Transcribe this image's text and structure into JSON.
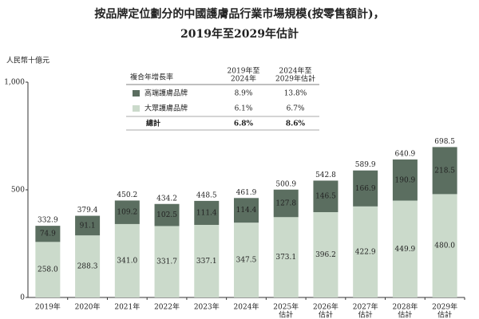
{
  "chart_data": {
    "type": "stacked_bar",
    "title": "按品牌定位劃分的中國護膚品行業市場規模(按零售額計)，",
    "subtitle": "2019年至2029年估計",
    "y_label": "人民幣十億元",
    "categories": [
      [
        "2019年"
      ],
      [
        "2020年"
      ],
      [
        "2021年"
      ],
      [
        "2022年"
      ],
      [
        "2023年"
      ],
      [
        "2024年"
      ],
      [
        "2025年",
        "估計"
      ],
      [
        "2026年",
        "估計"
      ],
      [
        "2027年",
        "估計"
      ],
      [
        "2028年",
        "估計"
      ],
      [
        "2029年",
        "估計"
      ]
    ],
    "series": [
      {
        "name": "大眾護膚品牌",
        "color": "#cbdacb",
        "values": [
          258.0,
          288.3,
          341.0,
          331.7,
          337.1,
          347.5,
          373.1,
          396.2,
          422.9,
          449.9,
          480.0
        ],
        "value_labels": [
          "258.0",
          "288.3",
          "341.0",
          "331.7",
          "337.1",
          "347.5",
          "373.1",
          "396.2",
          "422.9",
          "449.9",
          "480.0"
        ]
      },
      {
        "name": "高端護膚品牌",
        "color": "#5b6e60",
        "values": [
          74.9,
          91.1,
          109.2,
          102.5,
          111.4,
          114.4,
          127.8,
          146.5,
          166.9,
          190.9,
          218.5
        ],
        "value_labels": [
          "74.9",
          "91.1",
          "109.2",
          "102.5",
          "111.4",
          "114.4",
          "127.8",
          "146.5",
          "166.9",
          "190.9",
          "218.5"
        ]
      }
    ],
    "totals": [
      332.9,
      379.4,
      450.2,
      434.2,
      448.5,
      461.9,
      500.9,
      542.8,
      589.9,
      640.9,
      698.5
    ],
    "ylim": [
      0,
      1000
    ],
    "yticks": [
      0,
      500,
      {
        "value": 1000,
        "label": "1,000"
      }
    ],
    "cagr_table": {
      "header": [
        "複合年增長率",
        [
          "2019年至",
          "2024年"
        ],
        [
          "2024年至",
          "2029年估計"
        ]
      ],
      "rows": [
        [
          "高端護膚品牌",
          "8.9%",
          "13.8%"
        ],
        [
          "大眾護膚品牌",
          "6.1%",
          "6.7%"
        ],
        [
          "總計",
          "6.8%",
          "8.6%"
        ]
      ]
    }
  }
}
